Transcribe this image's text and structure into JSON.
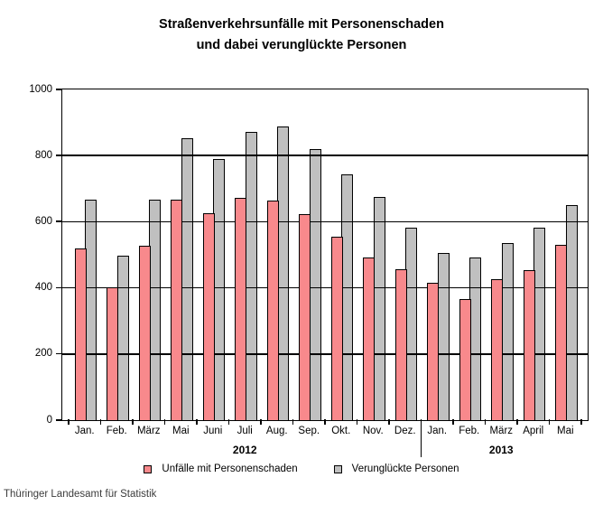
{
  "title": {
    "line1": "Straßenverkehrsunfälle mit Personenschaden",
    "line2": "und dabei verunglückte Personen"
  },
  "footer": "Thüringer Landesamt für Statistik",
  "colors": {
    "series1": "#F8898C",
    "series2": "#C0C0C0",
    "bar_border": "#000000",
    "axis": "#000000"
  },
  "chart_data": {
    "type": "bar",
    "title": "Straßenverkehrsunfälle mit Personenschaden und dabei verunglückte Personen",
    "categories": [
      "Jan.",
      "Feb.",
      "März",
      "Mai",
      "Juni",
      "Juli",
      "Aug.",
      "Sep.",
      "Okt.",
      "Nov.",
      "Dez.",
      "Jan.",
      "Feb.",
      "März",
      "April",
      "Mai"
    ],
    "year_groups": [
      {
        "label": "2012",
        "span": 11
      },
      {
        "label": "2013",
        "span": 5
      }
    ],
    "series": [
      {
        "name": "Unfälle mit Personenschaden",
        "color": "#F8898C",
        "values": [
          518,
          402,
          527,
          668,
          627,
          671,
          664,
          622,
          556,
          492,
          456,
          415,
          366,
          427,
          453,
          531
        ]
      },
      {
        "name": "Verunglückte Personen",
        "color": "#C0C0C0",
        "values": [
          668,
          497,
          668,
          853,
          789,
          872,
          887,
          821,
          743,
          676,
          582,
          506,
          492,
          536,
          581,
          651
        ]
      }
    ],
    "ylim": [
      0,
      1000
    ],
    "yticks": [
      0,
      200,
      400,
      600,
      800,
      1000
    ],
    "grid": true,
    "legend_position": "bottom"
  }
}
